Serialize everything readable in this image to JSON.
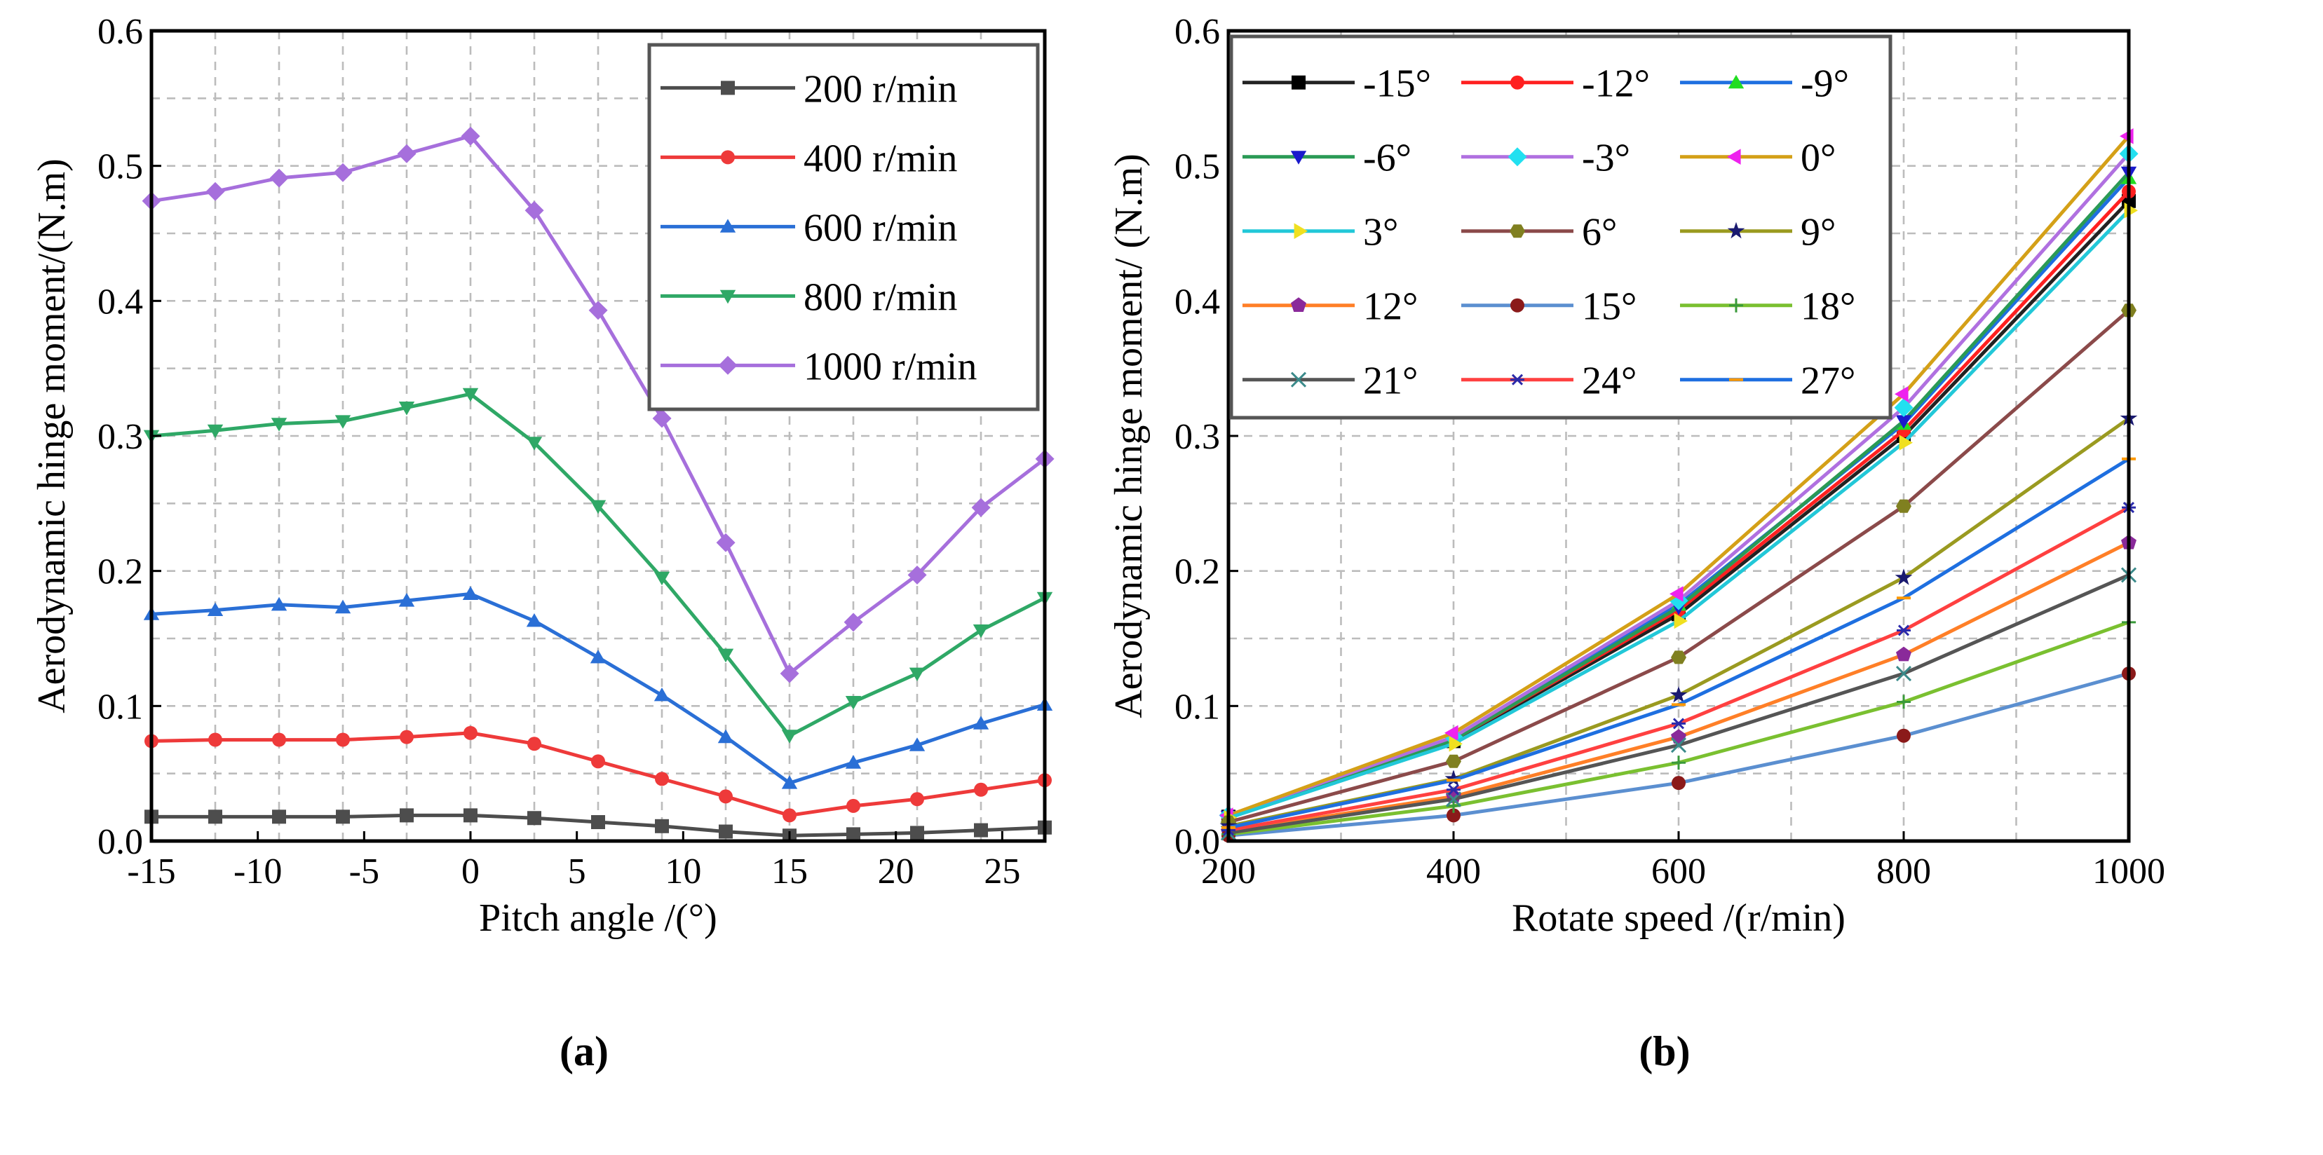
{
  "chart_data": [
    {
      "panel_label": "(a)",
      "type": "line",
      "xlabel": "Pitch angle /(°)",
      "ylabel": "Aerodynamic hinge moment/(N.m)",
      "xlim": [
        -15,
        27
      ],
      "ylim": [
        0,
        0.6
      ],
      "xticks": [
        -15,
        -10,
        -5,
        0,
        5,
        10,
        15,
        20,
        25
      ],
      "yticks": [
        "0.0",
        "0.1",
        "0.2",
        "0.3",
        "0.4",
        "0.5",
        "0.6"
      ],
      "grid": true,
      "legend_position": "top-right",
      "x": [
        -15,
        -12,
        -9,
        -6,
        -3,
        0,
        3,
        6,
        9,
        12,
        15,
        18,
        21,
        24,
        27
      ],
      "series": [
        {
          "name": "200 r/min",
          "color": "#4d4d4d",
          "marker": "square",
          "values": [
            0.018,
            0.018,
            0.018,
            0.018,
            0.019,
            0.019,
            0.017,
            0.014,
            0.011,
            0.007,
            0.004,
            0.005,
            0.006,
            0.008,
            0.01
          ]
        },
        {
          "name": "400 r/min",
          "color": "#ee3a3a",
          "marker": "circle",
          "values": [
            0.074,
            0.075,
            0.075,
            0.075,
            0.077,
            0.08,
            0.072,
            0.059,
            0.046,
            0.033,
            0.019,
            0.026,
            0.031,
            0.038,
            0.045
          ]
        },
        {
          "name": "600 r/min",
          "color": "#2a6fd6",
          "marker": "triangle-up",
          "values": [
            0.168,
            0.171,
            0.175,
            0.173,
            0.178,
            0.183,
            0.163,
            0.136,
            0.108,
            0.077,
            0.043,
            0.058,
            0.071,
            0.087,
            0.101
          ]
        },
        {
          "name": "800 r/min",
          "color": "#2fa866",
          "marker": "triangle-down",
          "values": [
            0.3,
            0.304,
            0.309,
            0.311,
            0.321,
            0.331,
            0.295,
            0.248,
            0.195,
            0.138,
            0.078,
            0.103,
            0.124,
            0.156,
            0.18
          ]
        },
        {
          "name": "1000 r/min",
          "color": "#a66fdc",
          "marker": "diamond",
          "values": [
            0.474,
            0.481,
            0.491,
            0.495,
            0.509,
            0.522,
            0.467,
            0.393,
            0.313,
            0.221,
            0.124,
            0.162,
            0.197,
            0.247,
            0.283
          ]
        }
      ]
    },
    {
      "panel_label": "(b)",
      "type": "line",
      "xlabel": "Rotate speed /(r/min)",
      "ylabel": "Aerodynamic hinge moment/ (N.m)",
      "xlim": [
        200,
        1000
      ],
      "ylim": [
        0,
        0.6
      ],
      "xticks": [
        200,
        400,
        600,
        800,
        1000
      ],
      "yticks": [
        "0.0",
        "0.1",
        "0.2",
        "0.3",
        "0.4",
        "0.5",
        "0.6"
      ],
      "grid": true,
      "legend_position": "top-left",
      "x": [
        200,
        400,
        600,
        800,
        1000
      ],
      "series": [
        {
          "name": "-15°",
          "color": "#222222",
          "marker_color": "#000000",
          "marker": "square",
          "values": [
            0.018,
            0.074,
            0.168,
            0.3,
            0.474
          ]
        },
        {
          "name": "-12°",
          "color": "#ff2020",
          "marker_color": "#ff2020",
          "marker": "circle",
          "values": [
            0.018,
            0.075,
            0.171,
            0.304,
            0.481
          ]
        },
        {
          "name": "-9°",
          "color": "#1e6fe0",
          "marker_color": "#22dd22",
          "marker": "triangle-up",
          "values": [
            0.018,
            0.075,
            0.175,
            0.309,
            0.491
          ]
        },
        {
          "name": "-6°",
          "color": "#2a9a55",
          "marker_color": "#1a1acc",
          "marker": "triangle-down",
          "values": [
            0.018,
            0.075,
            0.173,
            0.311,
            0.495
          ]
        },
        {
          "name": "-3°",
          "color": "#b070e0",
          "marker_color": "#22e0f0",
          "marker": "diamond",
          "values": [
            0.019,
            0.077,
            0.178,
            0.321,
            0.509
          ]
        },
        {
          "name": "0°",
          "color": "#d4a017",
          "marker_color": "#ee22ee",
          "marker": "triangle-left",
          "values": [
            0.019,
            0.08,
            0.183,
            0.331,
            0.522
          ]
        },
        {
          "name": "3°",
          "color": "#22c8d8",
          "marker_color": "#f0e020",
          "marker": "triangle-right",
          "values": [
            0.017,
            0.072,
            0.163,
            0.295,
            0.467
          ]
        },
        {
          "name": "6°",
          "color": "#8b4a4a",
          "marker_color": "#808020",
          "marker": "hexagon",
          "values": [
            0.014,
            0.059,
            0.136,
            0.248,
            0.393
          ]
        },
        {
          "name": "9°",
          "color": "#9a9a20",
          "marker_color": "#1a1a70",
          "marker": "star",
          "values": [
            0.011,
            0.046,
            0.108,
            0.195,
            0.313
          ]
        },
        {
          "name": "12°",
          "color": "#ff7f27",
          "marker_color": "#8a2a9a",
          "marker": "pentagon",
          "values": [
            0.007,
            0.033,
            0.077,
            0.138,
            0.221
          ]
        },
        {
          "name": "15°",
          "color": "#5b8fd0",
          "marker_color": "#8b1a1a",
          "marker": "circle",
          "values": [
            0.004,
            0.019,
            0.043,
            0.078,
            0.124
          ]
        },
        {
          "name": "18°",
          "color": "#7ac030",
          "marker_color": "#3a9a3a",
          "marker": "plus",
          "values": [
            0.005,
            0.026,
            0.058,
            0.103,
            0.162
          ]
        },
        {
          "name": "21°",
          "color": "#555555",
          "marker_color": "#3a8a8a",
          "marker": "cross",
          "values": [
            0.006,
            0.031,
            0.071,
            0.124,
            0.197
          ]
        },
        {
          "name": "24°",
          "color": "#ff4040",
          "marker_color": "#2a2aaa",
          "marker": "asterisk",
          "values": [
            0.008,
            0.038,
            0.087,
            0.156,
            0.247
          ]
        },
        {
          "name": "27°",
          "color": "#1e6fe0",
          "marker_color": "#ff9900",
          "marker": "dash",
          "values": [
            0.01,
            0.045,
            0.101,
            0.18,
            0.283
          ]
        }
      ]
    }
  ]
}
